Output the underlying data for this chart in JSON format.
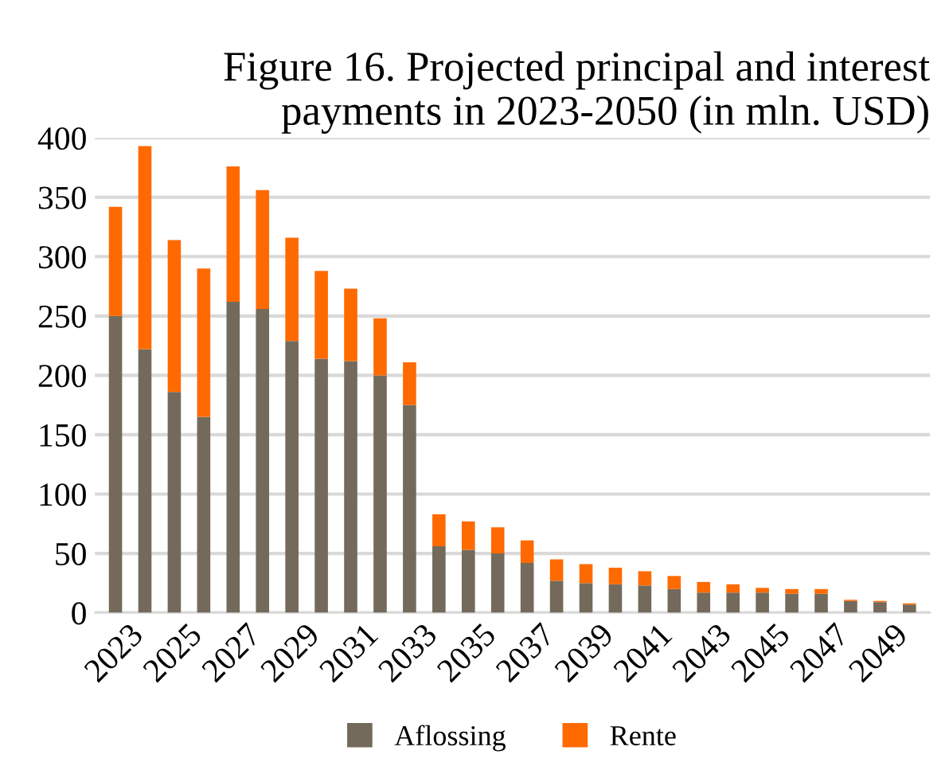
{
  "chart_data": {
    "type": "bar",
    "title": "Figure 16. Projected principal and interest\npayments in 2023-2050 (in mln. USD)",
    "categories": [
      "2023",
      null,
      "2025",
      null,
      "2027",
      null,
      "2029",
      null,
      "2031",
      null,
      "2033",
      null,
      "2035",
      null,
      "2037",
      null,
      "2039",
      null,
      "2041",
      null,
      "2043",
      null,
      "2045",
      null,
      "2047",
      null,
      "2049",
      null
    ],
    "stacked": true,
    "series": [
      {
        "name": "Aflossing",
        "color": "#736a5b",
        "values": [
          250,
          222,
          186,
          165,
          262,
          256,
          229,
          214,
          212,
          200,
          175,
          56,
          53,
          50,
          42,
          27,
          25,
          24,
          23,
          20,
          17,
          17,
          17,
          16,
          16,
          10,
          9,
          7
        ]
      },
      {
        "name": "Rente",
        "color": "#ff6a00",
        "values": [
          92,
          171,
          128,
          125,
          114,
          100,
          87,
          74,
          61,
          48,
          36,
          27,
          24,
          22,
          19,
          18,
          16,
          14,
          12,
          11,
          9,
          7,
          4,
          4,
          4,
          1,
          1,
          1
        ]
      }
    ],
    "ylim": [
      0,
      400
    ],
    "yticks": [
      0,
      50,
      100,
      150,
      200,
      250,
      300,
      350,
      400
    ],
    "grid": "y",
    "legend": "bottom"
  }
}
